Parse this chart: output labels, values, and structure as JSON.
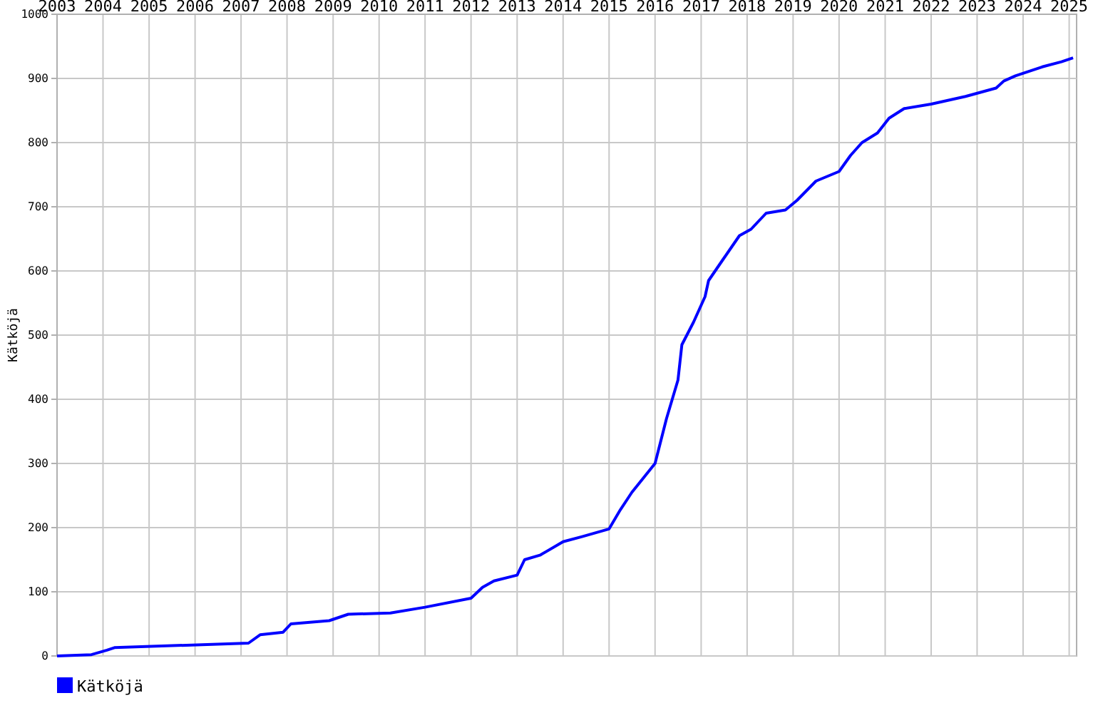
{
  "chart_data": {
    "type": "line",
    "ylabel": "Kätköjä",
    "x": [
      "2003-01",
      "2003-10",
      "2004-02",
      "2004-04",
      "2007-03",
      "2007-06",
      "2007-12",
      "2008-02",
      "2008-12",
      "2009-05",
      "2010-04",
      "2011-01",
      "2012-01",
      "2012-04",
      "2012-07",
      "2013-01",
      "2013-03",
      "2013-07",
      "2014-01",
      "2014-06",
      "2015-01",
      "2015-04",
      "2015-07",
      "2016-01",
      "2016-04",
      "2016-07",
      "2016-08",
      "2016-11",
      "2017-02",
      "2017-03",
      "2017-07",
      "2017-11",
      "2018-02",
      "2018-06",
      "2018-11",
      "2019-02",
      "2019-07",
      "2020-01",
      "2020-04",
      "2020-07",
      "2020-11",
      "2021-02",
      "2021-06",
      "2022-01",
      "2022-10",
      "2023-06",
      "2023-08",
      "2023-11",
      "2024-06",
      "2024-11",
      "2025-02"
    ],
    "series": [
      {
        "name": "Kätköjä",
        "color": "#0000ff",
        "values": [
          0,
          2,
          9,
          13,
          20,
          33,
          37,
          50,
          55,
          65,
          67,
          76,
          90,
          107,
          117,
          126,
          150,
          157,
          178,
          186,
          198,
          228,
          255,
          300,
          370,
          430,
          485,
          520,
          560,
          585,
          620,
          655,
          665,
          690,
          695,
          710,
          740,
          755,
          780,
          800,
          815,
          838,
          853,
          860,
          872,
          885,
          896,
          904,
          918,
          926,
          932
        ]
      }
    ],
    "xlim": [
      "2003-01",
      "2025-03"
    ],
    "xticks": [
      {
        "value": "2003",
        "label": "2003"
      },
      {
        "value": "2004",
        "label": "2004"
      },
      {
        "value": "2005",
        "label": "2005"
      },
      {
        "value": "2006",
        "label": "2006"
      },
      {
        "value": "2007",
        "label": "2007"
      },
      {
        "value": "2008",
        "label": "2008"
      },
      {
        "value": "2009",
        "label": "2009"
      },
      {
        "value": "2010",
        "label": "2010"
      },
      {
        "value": "2011",
        "label": "2011"
      },
      {
        "value": "2012",
        "label": "2012"
      },
      {
        "value": "2013",
        "label": "2013"
      },
      {
        "value": "2014",
        "label": "2014"
      },
      {
        "value": "2015",
        "label": "2015"
      },
      {
        "value": "2016",
        "label": "2016"
      },
      {
        "value": "2017",
        "label": "2017"
      },
      {
        "value": "2018",
        "label": "2018"
      },
      {
        "value": "2019",
        "label": "2019"
      },
      {
        "value": "2020",
        "label": "2020"
      },
      {
        "value": "2021",
        "label": "2021"
      },
      {
        "value": "2022",
        "label": "2022"
      },
      {
        "value": "2023",
        "label": "2023"
      },
      {
        "value": "2024",
        "label": "2024"
      },
      {
        "value": "2025",
        "label": "2025"
      }
    ],
    "ylim": [
      0,
      1000
    ],
    "yticks": [
      0,
      100,
      200,
      300,
      400,
      500,
      600,
      700,
      800,
      900,
      1000
    ],
    "grid": true,
    "legend": "bottom left",
    "marker": "none",
    "line_style": "solid"
  }
}
